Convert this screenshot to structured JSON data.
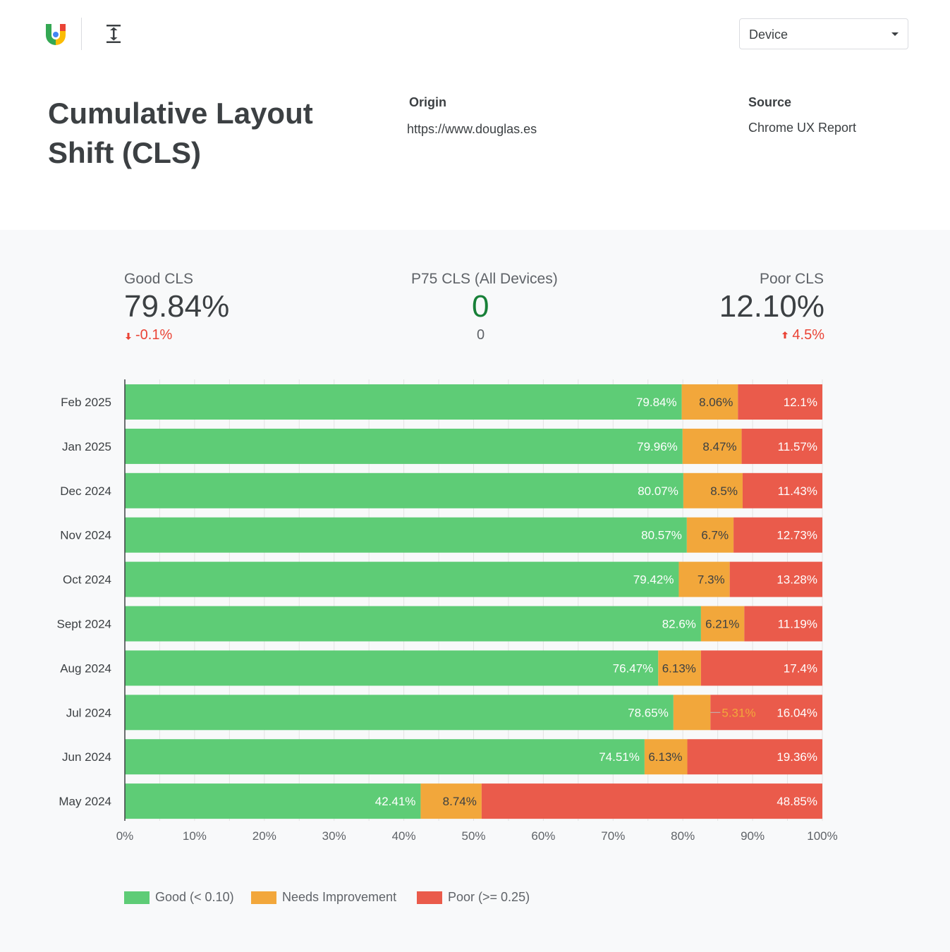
{
  "header": {
    "title": "Cumulative Layout Shift (CLS)",
    "device_select": {
      "label": "Device"
    },
    "origin": {
      "label": "Origin",
      "value": "https://www.douglas.es"
    },
    "source": {
      "label": "Source",
      "value": "Chrome UX Report"
    }
  },
  "kpis": {
    "good": {
      "label": "Good CLS",
      "value": "79.84%",
      "delta": "-0.1%",
      "delta_direction": "down"
    },
    "p75": {
      "label": "P75 CLS (All Devices)",
      "value": "0",
      "sub": "0"
    },
    "poor": {
      "label": "Poor CLS",
      "value": "12.10%",
      "delta": "4.5%",
      "delta_direction": "up"
    }
  },
  "colors": {
    "good": "#5ecc76",
    "needs_improvement": "#f2a73b",
    "poor": "#ea5b4b"
  },
  "chart_data": {
    "type": "bar",
    "orientation": "horizontal",
    "stacked": true,
    "categories": [
      "Feb 2025",
      "Jan 2025",
      "Dec 2024",
      "Nov 2024",
      "Oct 2024",
      "Sept 2024",
      "Aug 2024",
      "Jul 2024",
      "Jun 2024",
      "May 2024"
    ],
    "series": [
      {
        "name": "Good (< 0.10)",
        "values": [
          79.84,
          79.96,
          80.07,
          80.57,
          79.42,
          82.6,
          76.47,
          78.65,
          74.51,
          42.41
        ],
        "labels": [
          "79.84%",
          "79.96%",
          "80.07%",
          "80.57%",
          "79.42%",
          "82.6%",
          "76.47%",
          "78.65%",
          "74.51%",
          "42.41%"
        ]
      },
      {
        "name": "Needs Improvement",
        "values": [
          8.06,
          8.47,
          8.5,
          6.7,
          7.3,
          6.21,
          6.13,
          5.31,
          6.13,
          8.74
        ],
        "labels": [
          "8.06%",
          "8.47%",
          "8.5%",
          "6.7%",
          "7.3%",
          "6.21%",
          "6.13%",
          "5.31%",
          "6.13%",
          "8.74%"
        ]
      },
      {
        "name": "Poor (>= 0.25)",
        "values": [
          12.1,
          11.57,
          11.43,
          12.73,
          13.28,
          11.19,
          17.4,
          16.04,
          19.36,
          48.85
        ],
        "labels": [
          "12.1%",
          "11.57%",
          "11.43%",
          "12.73%",
          "13.28%",
          "11.19%",
          "17.4%",
          "16.04%",
          "19.36%",
          "48.85%"
        ]
      }
    ],
    "xlim": [
      0,
      100
    ],
    "x_ticks": [
      "0%",
      "10%",
      "20%",
      "30%",
      "40%",
      "50%",
      "60%",
      "70%",
      "80%",
      "90%",
      "100%"
    ],
    "legend_position": "bottom-left",
    "grid": true
  }
}
